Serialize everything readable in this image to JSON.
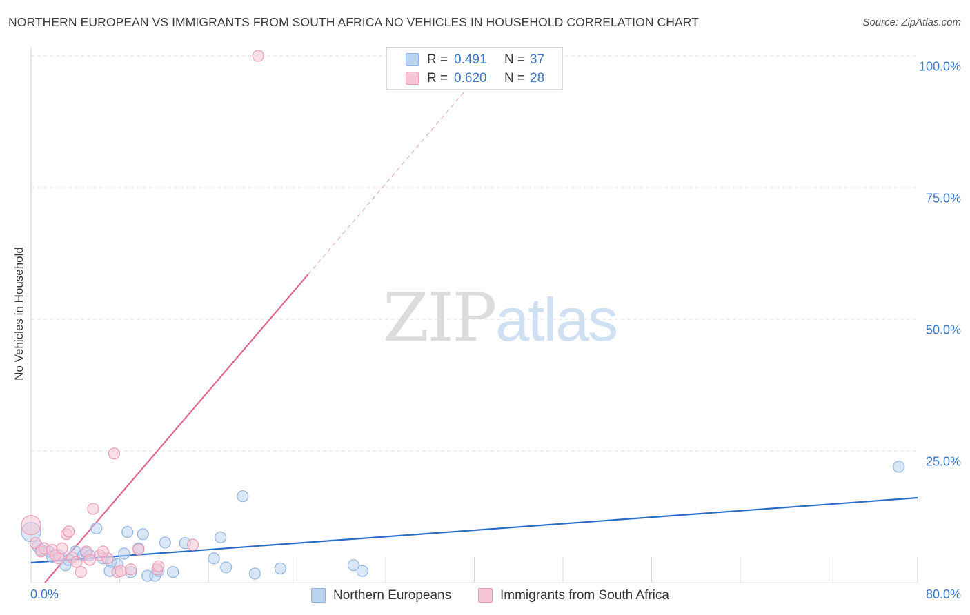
{
  "title": "NORTHERN EUROPEAN VS IMMIGRANTS FROM SOUTH AFRICA NO VEHICLES IN HOUSEHOLD CORRELATION CHART",
  "source": "Source: ZipAtlas.com",
  "watermark": {
    "zip": "ZIP",
    "atlas": "atlas"
  },
  "colors": {
    "blue_fill": "#b9d3f1",
    "blue_stroke": "#8fb4e3",
    "blue_line": "#2b6cc4",
    "pink_fill": "#f7c6d5",
    "pink_stroke": "#eb9bb5",
    "pink_line": "#e06690",
    "tick_text": "#3a75c4",
    "grid": "#e0e0e0"
  },
  "legend": {
    "rows": [
      {
        "r_label": "R =",
        "r_value": "0.491",
        "n_label": "N =",
        "n_value": "37"
      },
      {
        "r_label": "R =",
        "r_value": "0.620",
        "n_label": "N =",
        "n_value": "28"
      }
    ]
  },
  "chart_data": {
    "type": "scatter",
    "title": "NORTHERN EUROPEAN VS IMMIGRANTS FROM SOUTH AFRICA NO VEHICLES IN HOUSEHOLD CORRELATION CHART",
    "xlabel": "",
    "ylabel": "No Vehicles in Household",
    "xlim": [
      0,
      80
    ],
    "ylim": [
      0,
      100
    ],
    "x_tick_labels": [
      "0.0%",
      "80.0%"
    ],
    "y_ticks": [
      {
        "value": 100,
        "label": "100.0%"
      },
      {
        "value": 75,
        "label": "75.0%"
      },
      {
        "value": 50,
        "label": "50.0%"
      },
      {
        "value": 25,
        "label": "25.0%"
      }
    ],
    "grid": true,
    "series": [
      {
        "name": "Northern Europeans",
        "color": "#b9d3f1",
        "points": [
          [
            0,
            9.6
          ],
          [
            0.6,
            6.9
          ],
          [
            0.9,
            6.2
          ],
          [
            1.6,
            5.9
          ],
          [
            1.9,
            4.9
          ],
          [
            2.5,
            5.2
          ],
          [
            3.1,
            3.3
          ],
          [
            3.4,
            4.3
          ],
          [
            4.0,
            5.9
          ],
          [
            4.7,
            5.2
          ],
          [
            5.0,
            5.6
          ],
          [
            5.3,
            5.2
          ],
          [
            5.9,
            10.3
          ],
          [
            6.5,
            4.6
          ],
          [
            7.2,
            3.9
          ],
          [
            7.1,
            2.2
          ],
          [
            7.8,
            3.5
          ],
          [
            8.4,
            5.5
          ],
          [
            8.7,
            9.6
          ],
          [
            9.0,
            2.0
          ],
          [
            9.7,
            6.5
          ],
          [
            10.1,
            9.2
          ],
          [
            10.5,
            1.3
          ],
          [
            11.2,
            1.3
          ],
          [
            11.5,
            2.2
          ],
          [
            12.1,
            7.6
          ],
          [
            12.8,
            2.0
          ],
          [
            13.9,
            7.5
          ],
          [
            16.5,
            4.6
          ],
          [
            17.1,
            8.6
          ],
          [
            17.6,
            2.9
          ],
          [
            19.1,
            16.4
          ],
          [
            20.2,
            1.7
          ],
          [
            22.5,
            2.7
          ],
          [
            29.1,
            3.3
          ],
          [
            29.9,
            2.2
          ],
          [
            78.3,
            22.0
          ]
        ],
        "trend": {
          "x1": 0,
          "y1": 3.8,
          "x2": 80,
          "y2": 16.1
        }
      },
      {
        "name": "Immigrants from South Africa",
        "color": "#f7c6d5",
        "points": [
          [
            0,
            10.9
          ],
          [
            0.4,
            7.5
          ],
          [
            0.9,
            5.9
          ],
          [
            1.2,
            6.5
          ],
          [
            1.9,
            6.2
          ],
          [
            2.5,
            4.6
          ],
          [
            2.2,
            5.2
          ],
          [
            2.8,
            6.5
          ],
          [
            3.2,
            9.2
          ],
          [
            3.4,
            9.7
          ],
          [
            3.7,
            4.8
          ],
          [
            4.1,
            3.9
          ],
          [
            4.5,
            2.0
          ],
          [
            5.0,
            5.9
          ],
          [
            5.3,
            4.3
          ],
          [
            5.6,
            14.0
          ],
          [
            6.2,
            5.2
          ],
          [
            6.9,
            4.6
          ],
          [
            6.5,
            5.9
          ],
          [
            7.5,
            24.5
          ],
          [
            7.8,
            2.0
          ],
          [
            8.1,
            2.2
          ],
          [
            9.0,
            2.5
          ],
          [
            9.7,
            6.3
          ],
          [
            11.4,
            2.5
          ],
          [
            11.5,
            3.1
          ],
          [
            14.6,
            7.2
          ],
          [
            20.5,
            100
          ]
        ],
        "trend": {
          "x1": 1.25,
          "y1": 0,
          "x2": 25,
          "y2": 58.5,
          "dash_x2": 39.5,
          "dash_y2": 94.2
        }
      }
    ]
  }
}
